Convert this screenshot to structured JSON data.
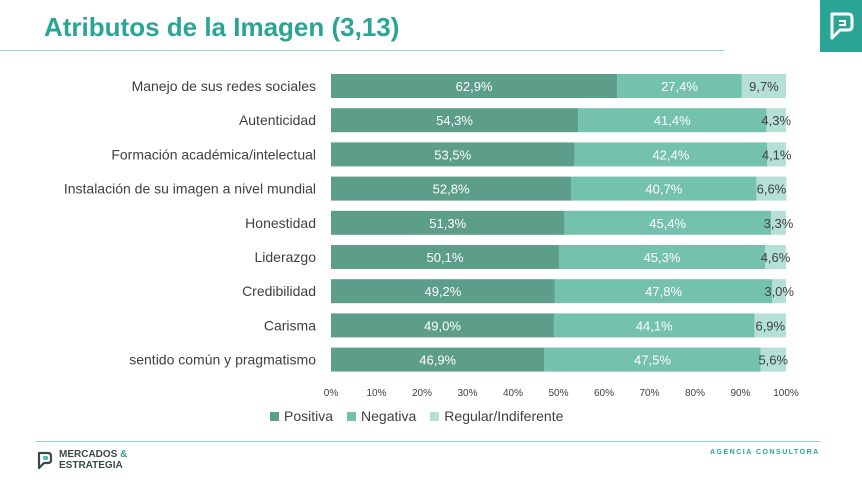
{
  "header": {
    "title": "Atributos de la Imagen (3,13)"
  },
  "footer": {
    "brand_line1": "MERCADOS",
    "brand_amp": "&",
    "brand_line2": "ESTRATEGIA",
    "agency": "AGENCIA CONSULTORA"
  },
  "colors": {
    "positiva": "#5c9e8a",
    "negativa": "#74c2ad",
    "regular": "#b5e0d5",
    "accent": "#2aa595"
  },
  "chart_data": {
    "type": "bar",
    "orientation": "horizontal",
    "stacked": true,
    "categories": [
      "Manejo de sus redes sociales",
      "Autenticidad",
      "Formación académica/intelectual",
      "Instalación de su imagen a nivel mundial",
      "Honestidad",
      "Liderazgo",
      "Credibilidad",
      "Carisma",
      "sentido común y pragmatismo"
    ],
    "series": [
      {
        "name": "Positiva",
        "values": [
          62.9,
          54.3,
          53.5,
          52.8,
          51.3,
          50.1,
          49.2,
          49.0,
          46.9
        ],
        "labels": [
          "62,9%",
          "54,3%",
          "53,5%",
          "52,8%",
          "51,3%",
          "50,1%",
          "49,2%",
          "49,0%",
          "46,9%"
        ]
      },
      {
        "name": "Negativa",
        "values": [
          27.4,
          41.4,
          42.4,
          40.7,
          45.4,
          45.3,
          47.8,
          44.1,
          47.5
        ],
        "labels": [
          "27,4%",
          "41,4%",
          "42,4%",
          "40,7%",
          "45,4%",
          "45,3%",
          "47,8%",
          "44,1%",
          "47,5%"
        ]
      },
      {
        "name": "Regular/Indiferente",
        "values": [
          9.7,
          4.3,
          4.1,
          6.6,
          3.3,
          4.6,
          3.0,
          6.9,
          5.6
        ],
        "labels": [
          "9,7%",
          "4,3%",
          "4,1%",
          "6,6%",
          "3,3%",
          "4,6%",
          "3,0%",
          "6,9%",
          "5,6%"
        ]
      }
    ],
    "xlim": [
      0,
      100
    ],
    "xticks": [
      "0%",
      "10%",
      "20%",
      "30%",
      "40%",
      "50%",
      "60%",
      "70%",
      "80%",
      "90%",
      "100%"
    ],
    "legend_position": "bottom",
    "grid": false
  }
}
